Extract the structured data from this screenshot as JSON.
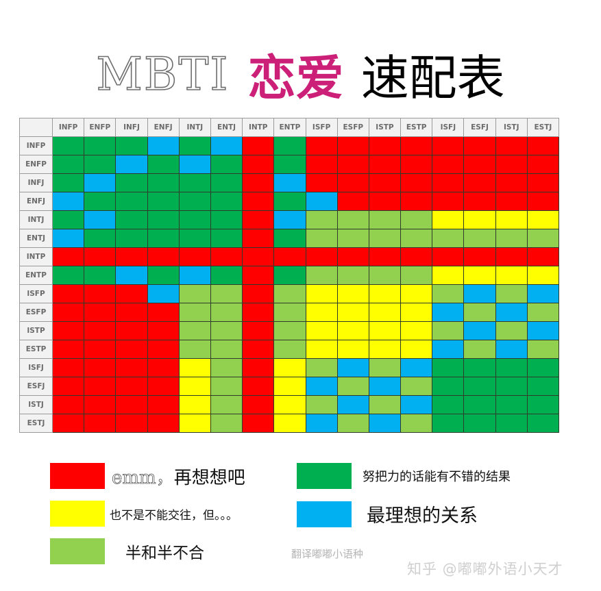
{
  "title": {
    "part1": "MBTI",
    "part2": "恋爱",
    "part3": "速配表"
  },
  "colors": {
    "R": "#ff0000",
    "Y": "#ffff00",
    "L": "#92d050",
    "G": "#00b050",
    "B": "#00b0f0"
  },
  "legend": [
    {
      "code": "R",
      "prefix": "emm，",
      "text": "再想想吧",
      "color": "#ff0000"
    },
    {
      "code": "Y",
      "prefix": "",
      "text": "也不是不能交往，但。。。",
      "color": "#ffff00"
    },
    {
      "code": "L",
      "prefix": "",
      "text": "半和半不合",
      "color": "#92d050"
    },
    {
      "code": "G",
      "prefix": "",
      "text": "努把力的话能有不错的结果",
      "color": "#00b050"
    },
    {
      "code": "B",
      "prefix": "",
      "text": "最理想的关系",
      "color": "#00b0f0"
    }
  ],
  "watermarks": {
    "small": "翻译嘟嘟小语种",
    "large": "知乎 @嘟嘟外语小天才"
  },
  "chart_data": {
    "type": "heatmap",
    "title": "MBTI 恋爱 速配表",
    "xlabel": "",
    "ylabel": "",
    "x": [
      "INFP",
      "ENFP",
      "INFJ",
      "ENFJ",
      "INTJ",
      "ENTJ",
      "INTP",
      "ENTP",
      "ISFP",
      "ESFP",
      "ISTP",
      "ESTP",
      "ISFJ",
      "ESFJ",
      "ISTJ",
      "ESTJ"
    ],
    "y": [
      "INFP",
      "ENFP",
      "INFJ",
      "ENFJ",
      "INTJ",
      "ENTJ",
      "INTP",
      "ENTP",
      "ISFP",
      "ESFP",
      "ISTP",
      "ESTP",
      "ISFJ",
      "ESFJ",
      "ISTJ",
      "ESTJ"
    ],
    "legend": {
      "R": "emm，再想想吧",
      "Y": "也不是不能交往，但。。。",
      "L": "半和半不合",
      "G": "努把力的话能有不错的结果",
      "B": "最理想的关系"
    },
    "legend_position": "bottom",
    "matrix": [
      [
        "G",
        "G",
        "G",
        "B",
        "G",
        "B",
        "R",
        "G",
        "R",
        "R",
        "R",
        "R",
        "R",
        "R",
        "R",
        "R"
      ],
      [
        "G",
        "G",
        "B",
        "G",
        "B",
        "G",
        "R",
        "G",
        "R",
        "R",
        "R",
        "R",
        "R",
        "R",
        "R",
        "R"
      ],
      [
        "G",
        "B",
        "G",
        "G",
        "G",
        "G",
        "R",
        "B",
        "R",
        "R",
        "R",
        "R",
        "R",
        "R",
        "R",
        "R"
      ],
      [
        "B",
        "G",
        "G",
        "G",
        "G",
        "G",
        "R",
        "G",
        "B",
        "R",
        "R",
        "R",
        "R",
        "R",
        "R",
        "R"
      ],
      [
        "G",
        "B",
        "G",
        "G",
        "G",
        "G",
        "R",
        "B",
        "L",
        "L",
        "L",
        "L",
        "Y",
        "Y",
        "Y",
        "Y"
      ],
      [
        "B",
        "G",
        "G",
        "G",
        "G",
        "G",
        "R",
        "G",
        "L",
        "L",
        "L",
        "L",
        "L",
        "L",
        "L",
        "L"
      ],
      [
        "R",
        "R",
        "R",
        "R",
        "R",
        "R",
        "R",
        "R",
        "R",
        "R",
        "R",
        "R",
        "R",
        "R",
        "R",
        "R"
      ],
      [
        "G",
        "G",
        "B",
        "G",
        "B",
        "G",
        "R",
        "G",
        "L",
        "L",
        "L",
        "L",
        "Y",
        "Y",
        "Y",
        "Y"
      ],
      [
        "R",
        "R",
        "R",
        "B",
        "L",
        "L",
        "R",
        "L",
        "Y",
        "Y",
        "Y",
        "Y",
        "L",
        "B",
        "L",
        "B"
      ],
      [
        "R",
        "R",
        "R",
        "R",
        "L",
        "L",
        "R",
        "L",
        "Y",
        "Y",
        "Y",
        "Y",
        "B",
        "L",
        "B",
        "L"
      ],
      [
        "R",
        "R",
        "R",
        "R",
        "L",
        "L",
        "R",
        "L",
        "Y",
        "Y",
        "Y",
        "Y",
        "L",
        "B",
        "L",
        "B"
      ],
      [
        "R",
        "R",
        "R",
        "R",
        "L",
        "L",
        "R",
        "L",
        "Y",
        "Y",
        "Y",
        "Y",
        "B",
        "L",
        "B",
        "L"
      ],
      [
        "R",
        "R",
        "R",
        "R",
        "Y",
        "L",
        "R",
        "Y",
        "L",
        "B",
        "L",
        "B",
        "G",
        "G",
        "G",
        "G"
      ],
      [
        "R",
        "R",
        "R",
        "R",
        "Y",
        "L",
        "R",
        "Y",
        "B",
        "L",
        "B",
        "L",
        "G",
        "G",
        "G",
        "G"
      ],
      [
        "R",
        "R",
        "R",
        "R",
        "Y",
        "L",
        "R",
        "Y",
        "L",
        "B",
        "L",
        "B",
        "G",
        "G",
        "G",
        "G"
      ],
      [
        "R",
        "R",
        "R",
        "R",
        "Y",
        "L",
        "R",
        "Y",
        "B",
        "L",
        "B",
        "L",
        "G",
        "G",
        "G",
        "G"
      ]
    ]
  }
}
